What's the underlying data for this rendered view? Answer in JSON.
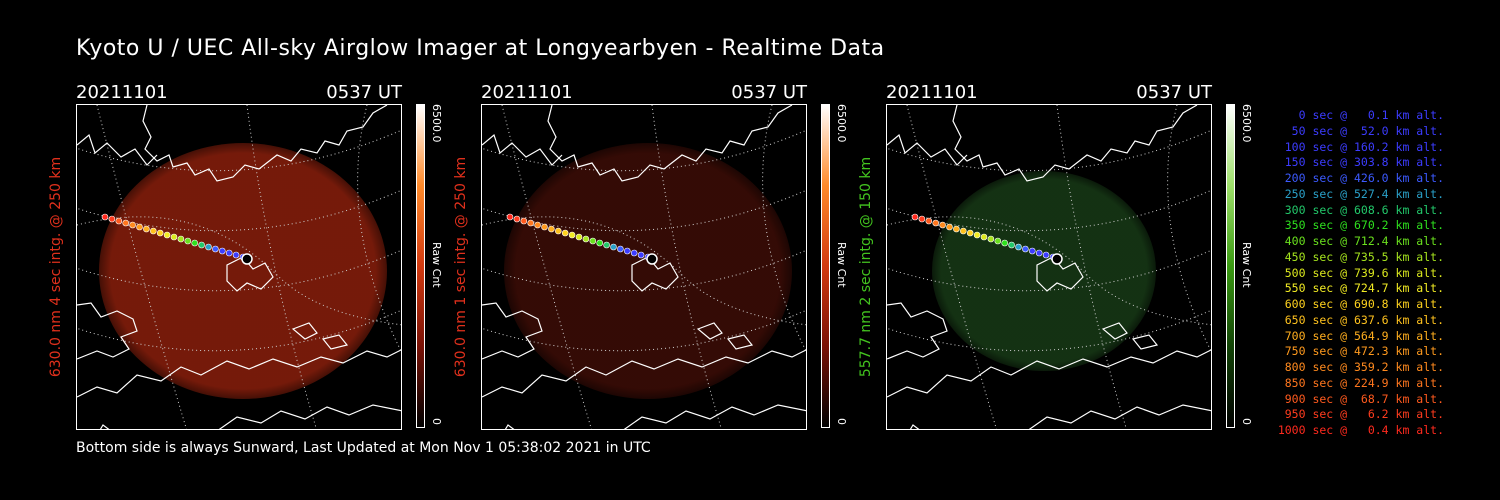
{
  "title": "Kyoto U / UEC All-sky Airglow Imager at Longyearbyen - Realtime Data",
  "footer": "Bottom side is always Sunward, Last Updated at Mon Nov  1 05:38:02 2021 in UTC",
  "panels": [
    {
      "date": "20211101",
      "time": "0537 UT",
      "side_label": "630.0 nm 4 sec intg. @ 250 km",
      "label_color": "#e0301c",
      "colorbar_max": "6500.0",
      "colorbar_min": "0",
      "colorbar_unit": "Raw Cnt",
      "colorbar_colors": [
        "#ffffff",
        "#ff8a2a",
        "#d23a10",
        "#7a1206",
        "#000000"
      ],
      "image_color": "#8a1f0c",
      "image_intensity": 0.85
    },
    {
      "date": "20211101",
      "time": "0537 UT",
      "side_label": "630.0 nm 1 sec intg. @ 250 km",
      "label_color": "#e0301c",
      "colorbar_max": "6500.0",
      "colorbar_min": "0",
      "colorbar_unit": "Raw Cnt",
      "colorbar_colors": [
        "#ffffff",
        "#ff8a2a",
        "#d23a10",
        "#7a1206",
        "#000000"
      ],
      "image_color": "#3a0c06",
      "image_intensity": 0.9
    },
    {
      "date": "20211101",
      "time": "0537 UT",
      "side_label": "557.7 nm 2 sec intg. @ 150 km",
      "label_color": "#43c41f",
      "colorbar_max": "6500.0",
      "colorbar_min": "0",
      "colorbar_unit": "Raw Cnt",
      "colorbar_colors": [
        "#ffffff",
        "#9ee06a",
        "#3a9a12",
        "#124406",
        "#000000"
      ],
      "image_color": "#153414",
      "image_intensity": 0.95
    }
  ],
  "legend": [
    {
      "text": "   0 sec @   0.1 km alt.",
      "color": "#3c3cff"
    },
    {
      "text": "  50 sec @  52.0 km alt.",
      "color": "#3c3cff"
    },
    {
      "text": " 100 sec @ 160.2 km alt.",
      "color": "#3c3cff"
    },
    {
      "text": " 150 sec @ 303.8 km alt.",
      "color": "#3c3cff"
    },
    {
      "text": " 200 sec @ 426.0 km alt.",
      "color": "#3c5aff"
    },
    {
      "text": " 250 sec @ 527.4 km alt.",
      "color": "#2aa0c8"
    },
    {
      "text": " 300 sec @ 608.6 km alt.",
      "color": "#22c86a"
    },
    {
      "text": " 350 sec @ 670.2 km alt.",
      "color": "#2ee01e"
    },
    {
      "text": " 400 sec @ 712.4 km alt.",
      "color": "#6ae01e"
    },
    {
      "text": " 450 sec @ 735.5 km alt.",
      "color": "#a6e41e"
    },
    {
      "text": " 500 sec @ 739.6 km alt.",
      "color": "#dbe81e"
    },
    {
      "text": " 550 sec @ 724.7 km alt.",
      "color": "#f2ec24"
    },
    {
      "text": " 600 sec @ 690.8 km alt.",
      "color": "#ffd21e"
    },
    {
      "text": " 650 sec @ 637.6 km alt.",
      "color": "#ffc21e"
    },
    {
      "text": " 700 sec @ 564.9 km alt.",
      "color": "#ffae1e"
    },
    {
      "text": " 750 sec @ 472.3 km alt.",
      "color": "#ff9a1e"
    },
    {
      "text": " 800 sec @ 359.2 km alt.",
      "color": "#ff8a1e"
    },
    {
      "text": " 850 sec @ 224.9 km alt.",
      "color": "#ff761e"
    },
    {
      "text": " 900 sec @  68.7 km alt.",
      "color": "#ff5a1e"
    },
    {
      "text": " 950 sec @   6.2 km alt.",
      "color": "#ff3c1e"
    },
    {
      "text": "1000 sec @   0.4 km alt.",
      "color": "#ff2a1e"
    }
  ]
}
